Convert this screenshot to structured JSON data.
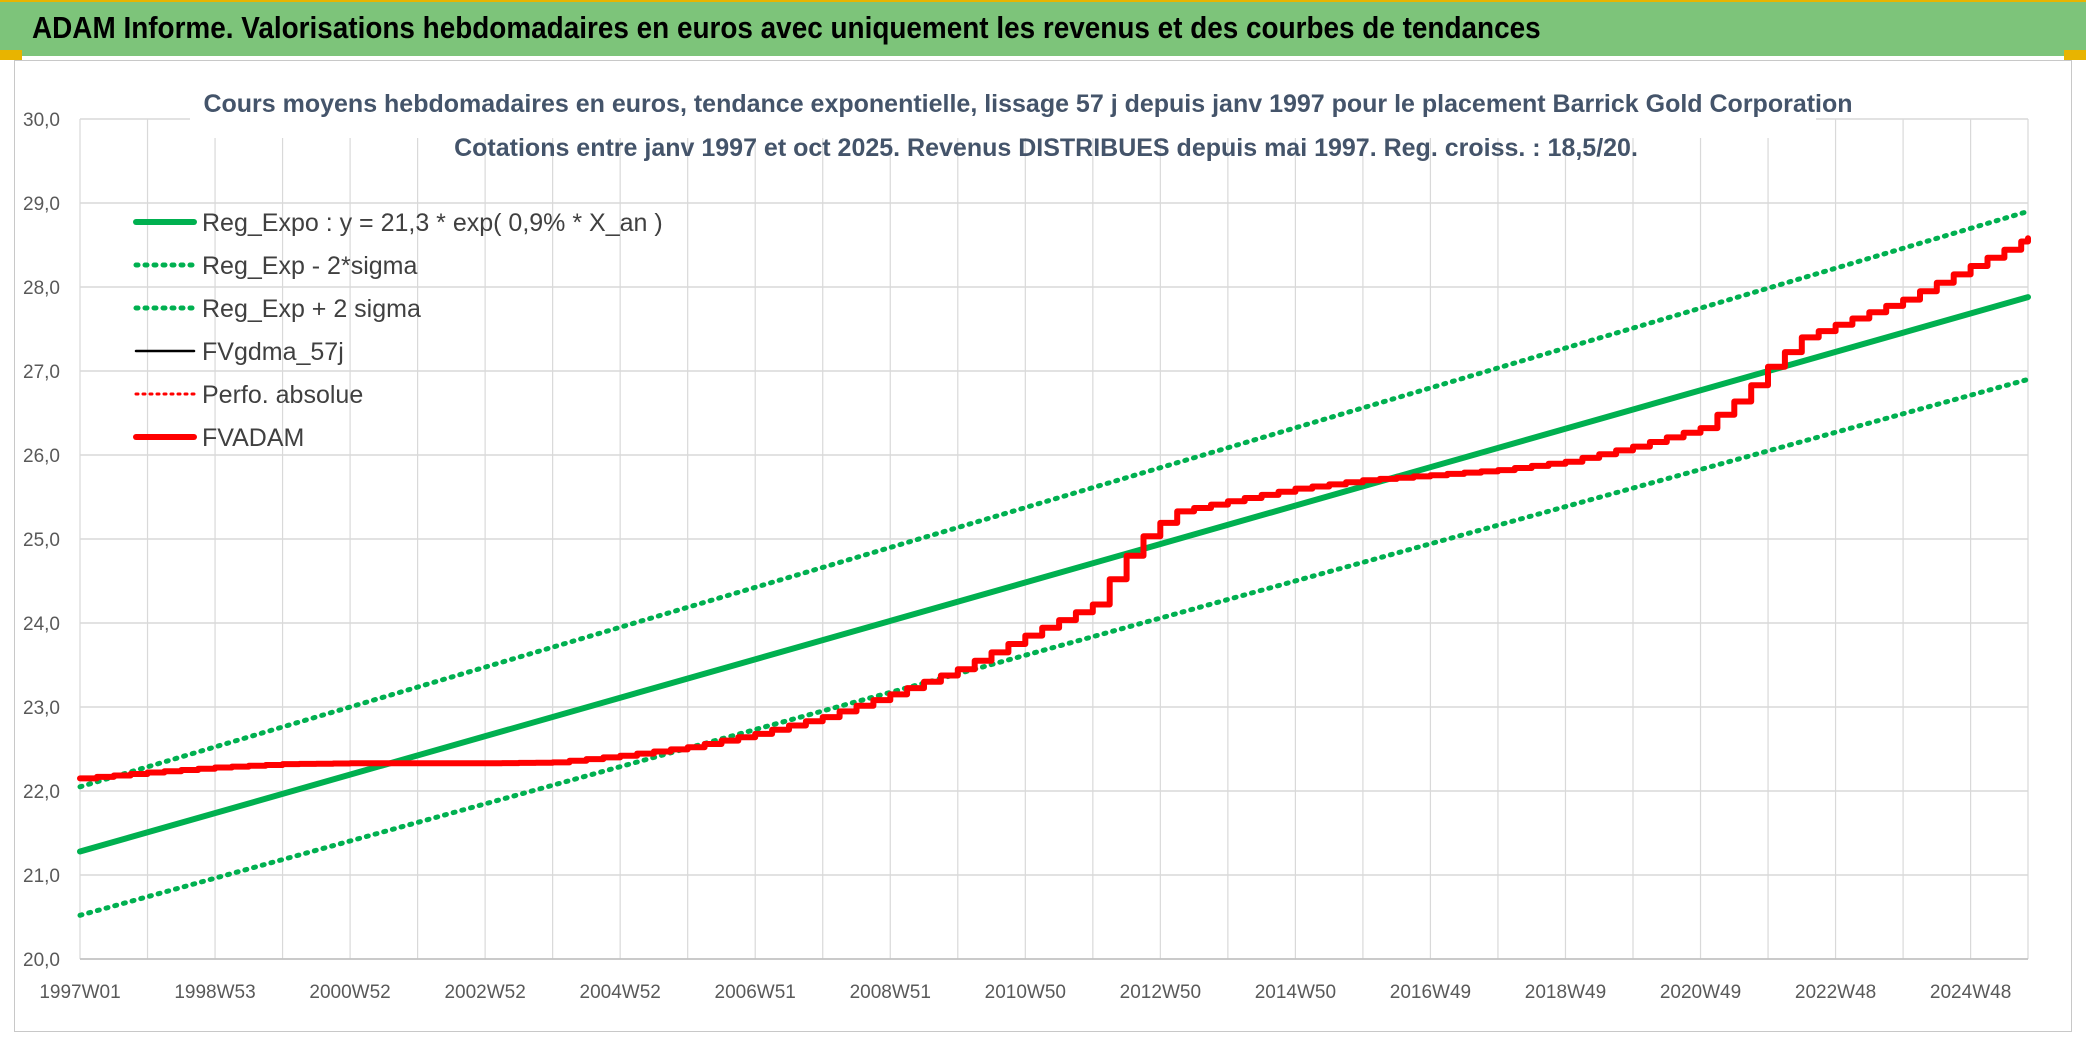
{
  "header": {
    "title": "ADAM Informe. Valorisations hebdomadaires en euros avec uniquement les revenus et des courbes de tendances"
  },
  "colors": {
    "banner": "#7dc47a",
    "green": "#00b050",
    "red": "#ff0000",
    "black": "#000000",
    "grid": "#d9d9d9"
  },
  "chart_data": {
    "type": "line",
    "title": "Cours moyens hebdomadaires en euros, tendance exponentielle, lissage 57 j depuis janv 1997 pour le placement Barrick Gold Corporation",
    "subtitle": "Cotations entre janv 1997 et oct 2025. Revenus DISTRIBUES depuis mai 1997. Reg. croiss. : 18,5/20.",
    "xlabel": "",
    "ylabel": "",
    "ylim": [
      20.0,
      30.0
    ],
    "xlim": [
      1997.0,
      2025.85
    ],
    "y_ticks": [
      "20,0",
      "21,0",
      "22,0",
      "23,0",
      "24,0",
      "25,0",
      "26,0",
      "27,0",
      "28,0",
      "29,0",
      "30,0"
    ],
    "x_ticks": [
      {
        "label": "1997W01",
        "x": 1997.0
      },
      {
        "label": "1998W53",
        "x": 1999.0
      },
      {
        "label": "2000W52",
        "x": 2001.0
      },
      {
        "label": "2002W52",
        "x": 2003.0
      },
      {
        "label": "2004W52",
        "x": 2005.0
      },
      {
        "label": "2006W51",
        "x": 2007.0
      },
      {
        "label": "2008W51",
        "x": 2009.0
      },
      {
        "label": "2010W50",
        "x": 2011.0
      },
      {
        "label": "2012W50",
        "x": 2013.0
      },
      {
        "label": "2014W50",
        "x": 2015.0
      },
      {
        "label": "2016W49",
        "x": 2017.0
      },
      {
        "label": "2018W49",
        "x": 2019.0
      },
      {
        "label": "2020W49",
        "x": 2021.0
      },
      {
        "label": "2022W48",
        "x": 2023.0
      },
      {
        "label": "2024W48",
        "x": 2025.0
      }
    ],
    "series": [
      {
        "name": "Reg_Expo : y = 21,3 * exp( 0,9% *  X_an )",
        "style": "solid-green",
        "x": [
          1997.0,
          2025.85
        ],
        "y": [
          21.28,
          27.88
        ]
      },
      {
        "name": "Reg_Exp - 2*sigma",
        "style": "dotted-green",
        "x": [
          1997.0,
          2025.85
        ],
        "y": [
          20.52,
          26.9
        ]
      },
      {
        "name": "Reg_Exp + 2 sigma",
        "style": "dotted-green",
        "x": [
          1997.0,
          2025.85
        ],
        "y": [
          22.05,
          28.9
        ]
      },
      {
        "name": "FVgdma_57j",
        "style": "solid-black",
        "x": [
          1997.0,
          1998.0,
          1999.0,
          2000.0,
          2001.0,
          2002.0,
          2003.0,
          2004.0,
          2005.0,
          2006.0,
          2007.0,
          2008.0,
          2009.0,
          2010.0,
          2011.0,
          2012.0,
          2012.4,
          2012.7,
          2013.2,
          2014.0,
          2015.0,
          2016.0,
          2017.0,
          2018.0,
          2019.0,
          2020.0,
          2021.0,
          2021.6,
          2022.0,
          2022.5,
          2023.0,
          2024.0,
          2025.0,
          2025.85
        ],
        "y": [
          22.15,
          22.22,
          22.28,
          22.32,
          22.33,
          22.33,
          22.33,
          22.34,
          22.42,
          22.52,
          22.68,
          22.88,
          23.15,
          23.45,
          23.85,
          24.22,
          24.7,
          25.0,
          25.32,
          25.45,
          25.6,
          25.7,
          25.76,
          25.82,
          25.92,
          26.1,
          26.32,
          26.7,
          27.05,
          27.4,
          27.55,
          27.85,
          28.25,
          28.58
        ]
      },
      {
        "name": "Perfo. absolue",
        "style": "dotted-red",
        "x": [
          1997.0,
          1998.0,
          1999.0,
          2000.0,
          2001.0,
          2002.0,
          2003.0,
          2004.0,
          2005.0,
          2006.0,
          2007.0,
          2008.0,
          2009.0,
          2010.0,
          2011.0,
          2012.0,
          2012.4,
          2012.7,
          2013.2,
          2014.0,
          2015.0,
          2016.0,
          2017.0,
          2018.0,
          2019.0,
          2020.0,
          2021.0,
          2021.6,
          2022.0,
          2022.5,
          2023.0,
          2024.0,
          2025.0,
          2025.85
        ],
        "y": [
          22.15,
          22.22,
          22.28,
          22.32,
          22.33,
          22.33,
          22.33,
          22.34,
          22.42,
          22.52,
          22.68,
          22.88,
          23.15,
          23.45,
          23.85,
          24.22,
          24.7,
          25.0,
          25.32,
          25.45,
          25.6,
          25.7,
          25.76,
          25.82,
          25.92,
          26.1,
          26.32,
          26.7,
          27.05,
          27.4,
          27.55,
          27.85,
          28.25,
          28.58
        ]
      },
      {
        "name": "FVADAM",
        "style": "solid-red",
        "x": [
          1997.0,
          1998.0,
          1999.0,
          2000.0,
          2001.0,
          2002.0,
          2003.0,
          2004.0,
          2005.0,
          2006.0,
          2007.0,
          2008.0,
          2009.0,
          2010.0,
          2011.0,
          2012.0,
          2012.4,
          2012.7,
          2013.2,
          2014.0,
          2015.0,
          2016.0,
          2017.0,
          2018.0,
          2019.0,
          2020.0,
          2021.0,
          2021.6,
          2022.0,
          2022.5,
          2023.0,
          2024.0,
          2025.0,
          2025.85
        ],
        "y": [
          22.15,
          22.22,
          22.28,
          22.32,
          22.33,
          22.33,
          22.33,
          22.34,
          22.42,
          22.52,
          22.68,
          22.88,
          23.15,
          23.45,
          23.85,
          24.22,
          24.7,
          25.0,
          25.32,
          25.45,
          25.6,
          25.7,
          25.76,
          25.82,
          25.92,
          26.1,
          26.32,
          26.7,
          27.05,
          27.4,
          27.55,
          27.85,
          28.25,
          28.58
        ]
      }
    ],
    "legend_position": "top-left",
    "grid": true
  }
}
